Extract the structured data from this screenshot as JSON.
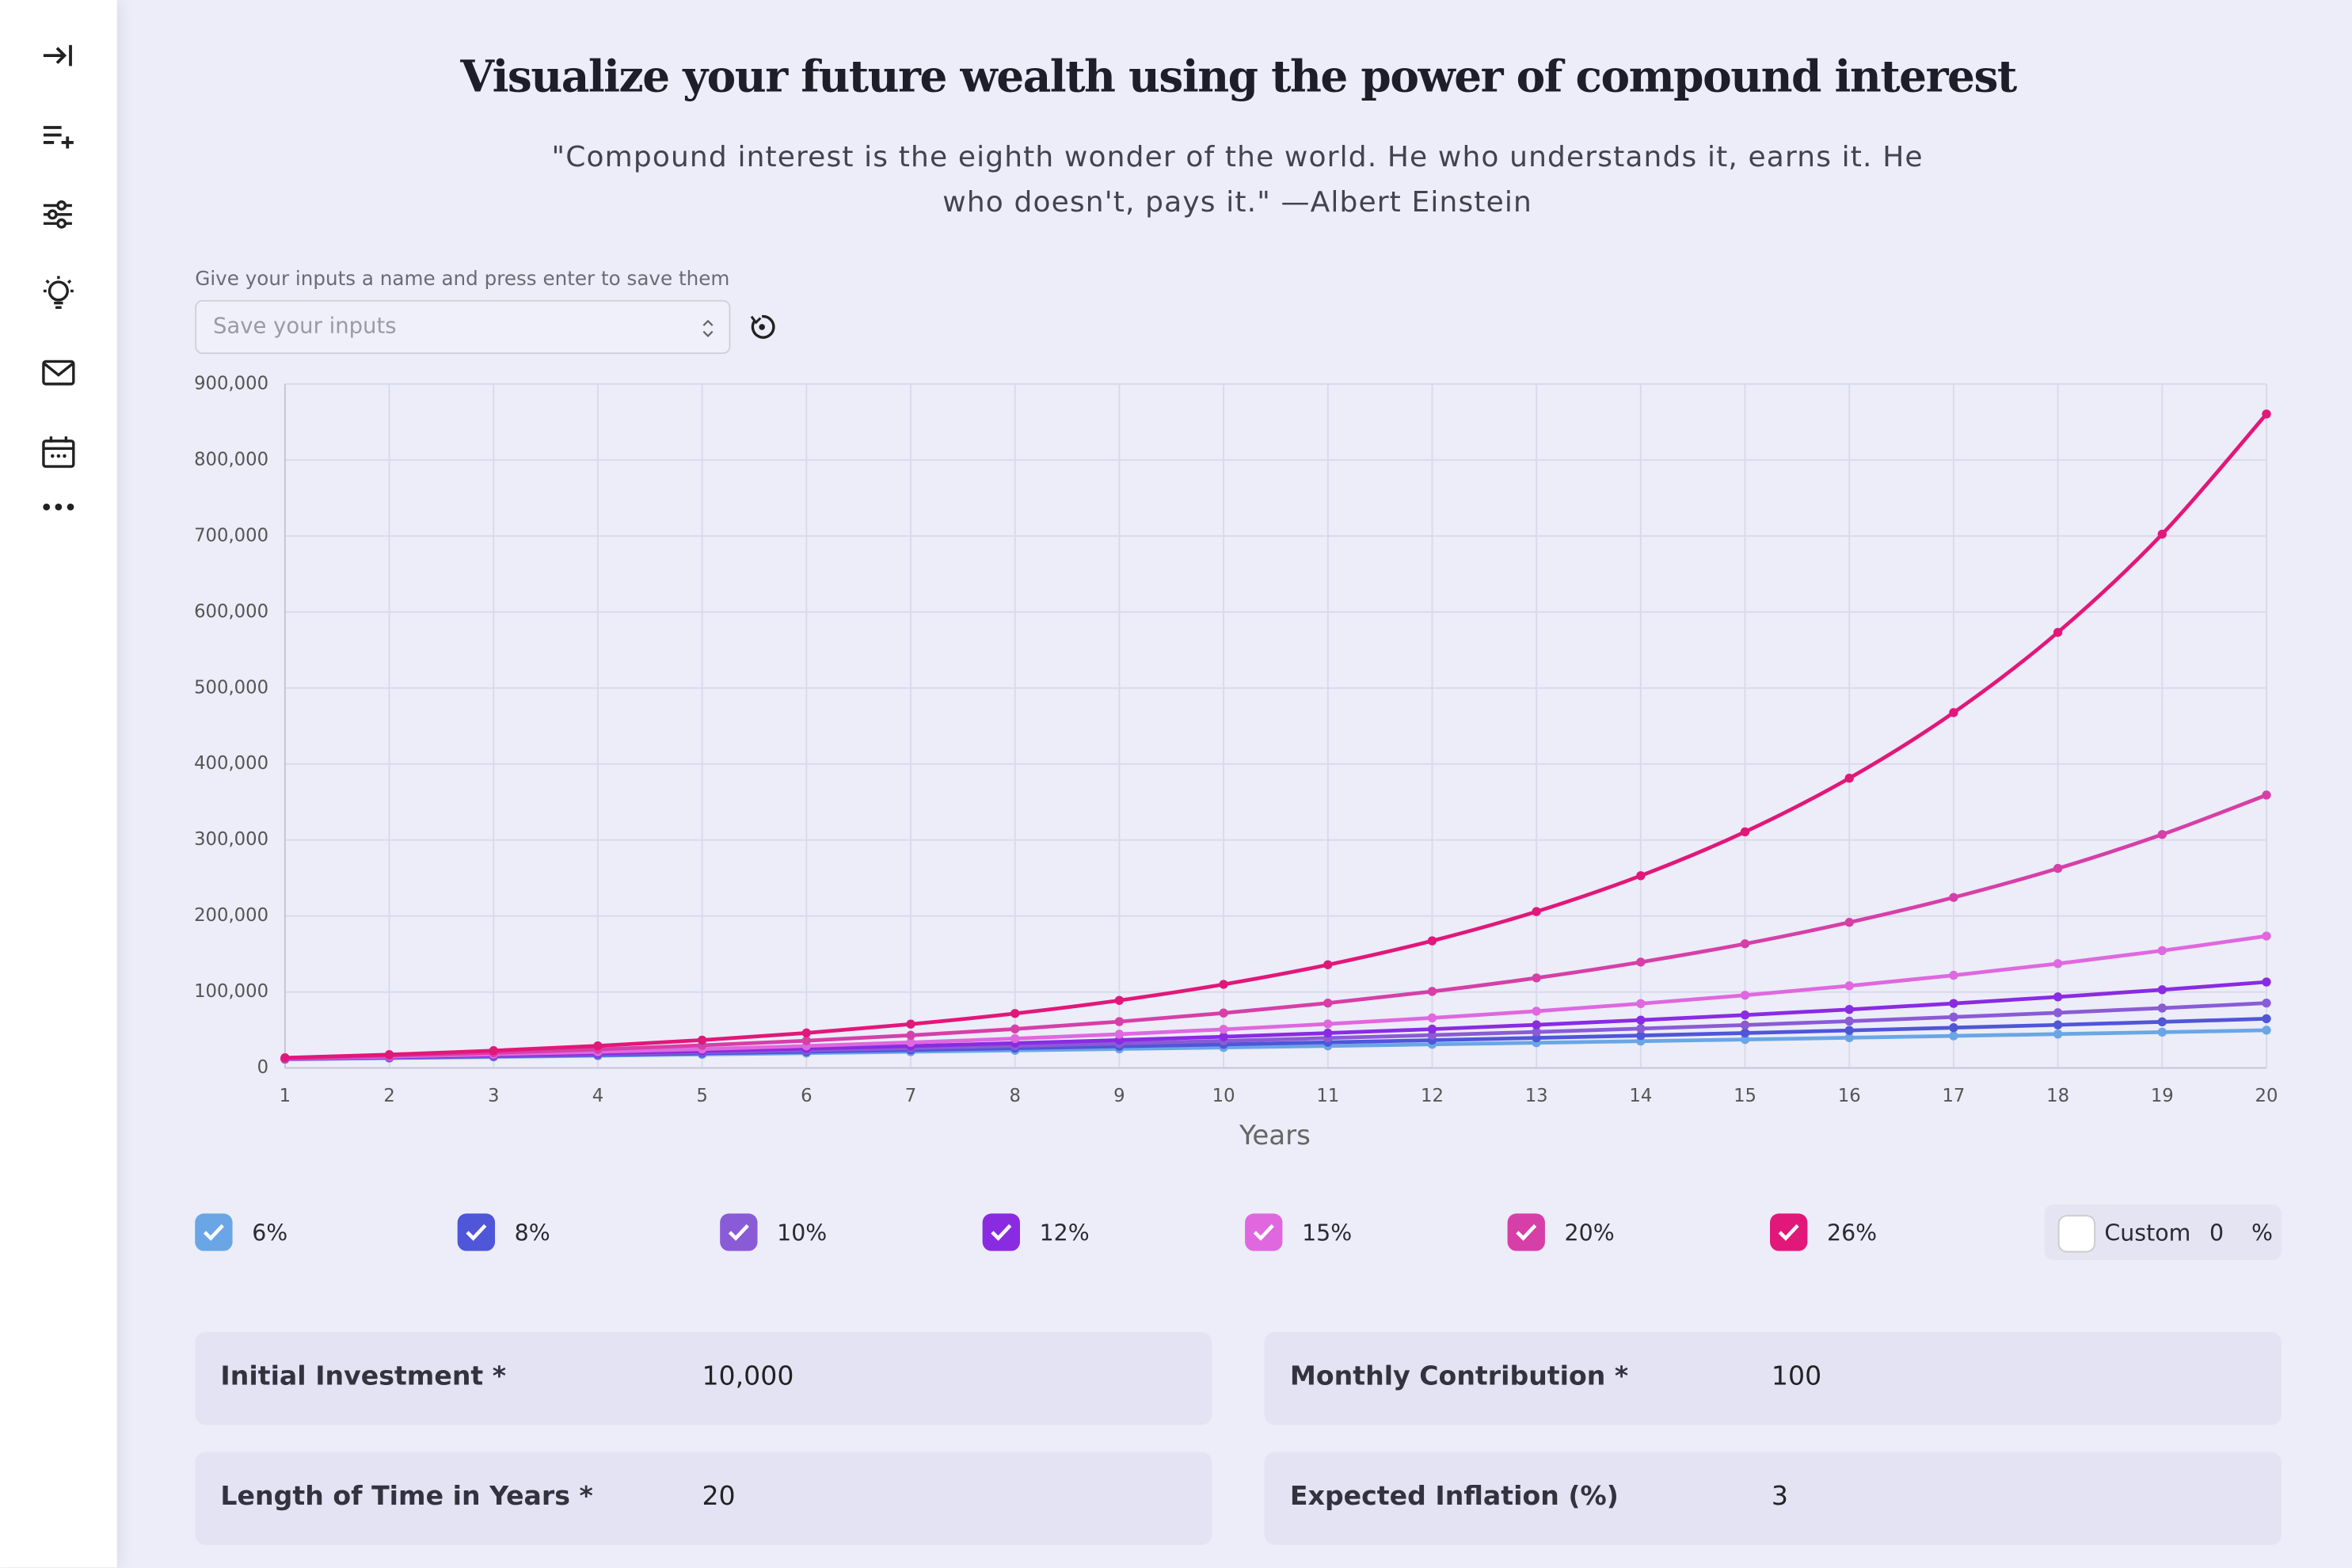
{
  "header": {
    "title": "Visualize your future wealth using the power of compound interest",
    "quote": "\"Compound interest is the eighth wonder of the world. He who understands it, earns it. He who doesn't, pays it.\" —Albert Einstein"
  },
  "save": {
    "hint": "Give your inputs a name and press enter to save them",
    "placeholder": "Save your inputs"
  },
  "chart_data": {
    "type": "line",
    "xlabel": "Years",
    "x": [
      1,
      2,
      3,
      4,
      5,
      6,
      7,
      8,
      9,
      10,
      11,
      12,
      13,
      14,
      15,
      16,
      17,
      18,
      19,
      20
    ],
    "xlim": [
      1,
      20
    ],
    "xticks": [
      1,
      2,
      3,
      4,
      5,
      6,
      7,
      8,
      9,
      10,
      11,
      12,
      13,
      14,
      15,
      16,
      17,
      18,
      19,
      20
    ],
    "ylim": [
      0,
      900000
    ],
    "yticks": [
      0,
      {
        "value": 100000,
        "label": "100,000"
      },
      {
        "value": 200000,
        "label": "200,000"
      },
      {
        "value": 300000,
        "label": "300,000"
      },
      {
        "value": 400000,
        "label": "400,000"
      },
      {
        "value": 500000,
        "label": "500,000"
      },
      {
        "value": 600000,
        "label": "600,000"
      },
      {
        "value": 700000,
        "label": "700,000"
      },
      {
        "value": 800000,
        "label": "800,000"
      },
      {
        "value": 900000,
        "label": "900,000"
      }
    ],
    "grid": true,
    "series": [
      {
        "name": "6%",
        "color": "#6aa6e6",
        "values": [
          11500,
          13000,
          14600,
          16200,
          17900,
          19600,
          21400,
          23200,
          25100,
          27000,
          29000,
          31100,
          33200,
          35300,
          37500,
          39800,
          42200,
          44600,
          47100,
          49700
        ]
      },
      {
        "name": "8%",
        "color": "#4f56d8",
        "values": [
          11700,
          13500,
          15300,
          17200,
          19300,
          21400,
          23700,
          26000,
          28500,
          31000,
          33800,
          36600,
          39600,
          42700,
          46000,
          49400,
          53000,
          56700,
          60700,
          64800
        ]
      },
      {
        "name": "10%",
        "color": "#8a5bd6",
        "values": [
          11900,
          13900,
          16000,
          18300,
          20800,
          23400,
          26200,
          29200,
          32300,
          35700,
          39400,
          43200,
          47400,
          51800,
          56500,
          61600,
          67000,
          72700,
          78800,
          85400
        ]
      },
      {
        "name": "12%",
        "color": "#8a2be2",
        "values": [
          12100,
          14300,
          16800,
          19400,
          22300,
          25500,
          28900,
          32700,
          36700,
          41100,
          45900,
          51100,
          56800,
          63000,
          69700,
          77000,
          84900,
          93500,
          102900,
          113100
        ]
      },
      {
        "name": "15%",
        "color": "#df68df",
        "values": [
          12400,
          15000,
          18000,
          21200,
          24900,
          29000,
          33600,
          38700,
          44400,
          50800,
          57900,
          65900,
          74700,
          84700,
          95700,
          108100,
          121900,
          137300,
          154400,
          173600
        ]
      },
      {
        "name": "20%",
        "color": "#d63fa8",
        "values": [
          12900,
          16200,
          20000,
          24500,
          29800,
          35900,
          43000,
          51300,
          61000,
          72300,
          85400,
          100700,
          118500,
          139300,
          163400,
          191600,
          224400,
          262600,
          307200,
          359100
        ]
      },
      {
        "name": "26%",
        "color": "#e2177a",
        "values": [
          13400,
          17600,
          22800,
          29100,
          36700,
          46100,
          57700,
          71700,
          88900,
          110000,
          135800,
          167300,
          205800,
          253000,
          310700,
          381300,
          467600,
          573200,
          702400,
          860500
        ]
      }
    ]
  },
  "custom": {
    "label": "Custom",
    "value": 0,
    "unit": "%"
  },
  "inputs": [
    {
      "label": "Initial Investment *",
      "value": "10,000"
    },
    {
      "label": "Monthly Contribution *",
      "value": "100"
    },
    {
      "label": "Length of Time in Years *",
      "value": "20"
    },
    {
      "label": "Expected Inflation (%)",
      "value": "3"
    }
  ]
}
